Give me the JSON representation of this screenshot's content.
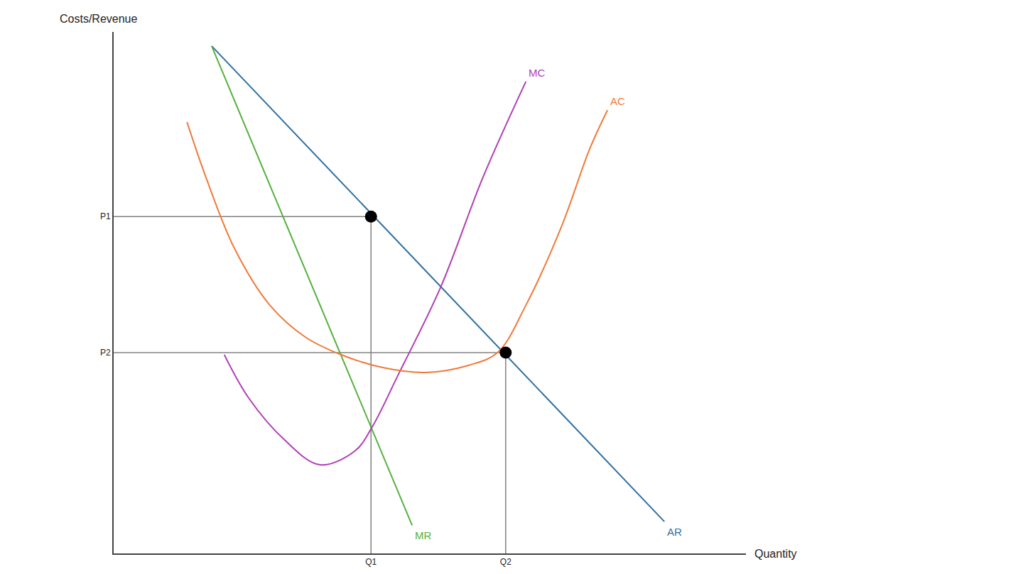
{
  "chart_data": {
    "type": "line",
    "x_label": "Quantity",
    "y_label": "Costs/Revenue",
    "xlim": [
      0,
      100
    ],
    "ylim": [
      0,
      100
    ],
    "xticks": [
      {
        "value": 40.7,
        "label": "Q1"
      },
      {
        "value": 62.0,
        "label": "Q2"
      }
    ],
    "yticks": [
      {
        "value": 38.5,
        "label": "P2"
      },
      {
        "value": 64.6,
        "label": "P1"
      }
    ],
    "grid": false,
    "series": [
      {
        "name": "AR",
        "color": "#2f6f9f",
        "line_style": "solid",
        "x": [
          15.5,
          87.1
        ],
        "values": [
          97.3,
          6.1
        ]
      },
      {
        "name": "MR",
        "color": "#55b03c",
        "line_style": "solid",
        "x": [
          15.5,
          47.2
        ],
        "values": [
          97.3,
          5.4
        ]
      },
      {
        "name": "MC",
        "color": "#b03fb5",
        "line_style": "smooth",
        "x": [
          17.5,
          21.3,
          27.0,
          32.6,
          38.2,
          41.0,
          44.9,
          51.7,
          58.4,
          65.2
        ],
        "values": [
          38.1,
          29.9,
          21.8,
          17.0,
          19.7,
          24.5,
          34.0,
          51.0,
          72.1,
          90.5
        ]
      },
      {
        "name": "AC",
        "color": "#f07a3a",
        "line_style": "smooth",
        "x": [
          11.6,
          14.6,
          19.1,
          24.7,
          30.3,
          36.0,
          42.7,
          49.4,
          56.2,
          60.7,
          65.2,
          70.8,
          75.3,
          78.1
        ],
        "values": [
          82.7,
          72.1,
          58.5,
          47.6,
          41.5,
          38.1,
          35.6,
          34.7,
          36.1,
          38.5,
          47.6,
          62.6,
          77.6,
          85.0
        ]
      }
    ],
    "points": {
      "x": [
        40.7,
        62.0
      ],
      "values": [
        64.6,
        38.5
      ],
      "color": "#000000",
      "marker": "circle"
    }
  }
}
